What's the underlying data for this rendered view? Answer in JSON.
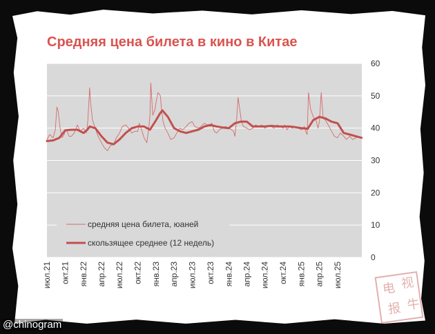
{
  "chart_data": {
    "type": "line",
    "title": "Средняя цена билета в кино в Китае",
    "xlabel": "",
    "ylabel": "",
    "ylim": [
      0,
      60
    ],
    "yticks": [
      "0",
      "10",
      "20",
      "30",
      "40",
      "50",
      "60"
    ],
    "xlim": [
      "2021-07-01",
      "2025-10-31"
    ],
    "xticks": [
      {
        "label": "июл.21",
        "date": "2021-07-01"
      },
      {
        "label": "окт.21",
        "date": "2021-10-01"
      },
      {
        "label": "янв.22",
        "date": "2022-01-01"
      },
      {
        "label": "апр.22",
        "date": "2022-04-01"
      },
      {
        "label": "июл.22",
        "date": "2022-07-01"
      },
      {
        "label": "окт.22",
        "date": "2022-10-01"
      },
      {
        "label": "янв.23",
        "date": "2023-01-01"
      },
      {
        "label": "апр.23",
        "date": "2023-04-01"
      },
      {
        "label": "июл.23",
        "date": "2023-07-01"
      },
      {
        "label": "окт.23",
        "date": "2023-10-01"
      },
      {
        "label": "янв.24",
        "date": "2024-01-01"
      },
      {
        "label": "апр.24",
        "date": "2024-04-01"
      },
      {
        "label": "июл.24",
        "date": "2024-07-01"
      },
      {
        "label": "окт.24",
        "date": "2024-10-01"
      },
      {
        "label": "янв.25",
        "date": "2025-01-01"
      },
      {
        "label": "апр.25",
        "date": "2025-04-01"
      },
      {
        "label": "июл.25",
        "date": "2025-07-01"
      }
    ],
    "grid": true,
    "legend_position": "bottom-left",
    "colors": {
      "title": "#d9534f",
      "weekly": "#d46a6a",
      "average": "#c0504d",
      "plot_bg": "#d9d9d9"
    },
    "series": [
      {
        "name": "средняя цена билета, юаней",
        "style": "thin",
        "x": [
          "2021-07-01",
          "2021-07-15",
          "2021-08-01",
          "2021-08-12",
          "2021-08-20",
          "2021-08-27",
          "2021-09-05",
          "2021-09-15",
          "2021-09-25",
          "2021-10-01",
          "2021-10-08",
          "2021-10-20",
          "2021-11-01",
          "2021-11-15",
          "2021-12-01",
          "2021-12-15",
          "2022-01-01",
          "2022-01-15",
          "2022-01-22",
          "2022-02-01",
          "2022-02-05",
          "2022-02-15",
          "2022-03-01",
          "2022-03-15",
          "2022-04-01",
          "2022-04-15",
          "2022-05-01",
          "2022-05-15",
          "2022-06-01",
          "2022-06-15",
          "2022-07-01",
          "2022-07-15",
          "2022-08-01",
          "2022-08-15",
          "2022-09-01",
          "2022-09-15",
          "2022-10-01",
          "2022-10-08",
          "2022-10-20",
          "2022-11-01",
          "2022-11-15",
          "2022-11-25",
          "2022-12-01",
          "2022-12-05",
          "2022-12-15",
          "2022-12-25",
          "2023-01-01",
          "2023-01-10",
          "2023-01-22",
          "2023-01-28",
          "2023-02-05",
          "2023-02-15",
          "2023-03-01",
          "2023-03-15",
          "2023-04-01",
          "2023-04-15",
          "2023-05-01",
          "2023-05-15",
          "2023-06-01",
          "2023-06-15",
          "2023-07-01",
          "2023-07-15",
          "2023-08-01",
          "2023-08-15",
          "2023-09-01",
          "2023-09-15",
          "2023-10-01",
          "2023-10-08",
          "2023-10-20",
          "2023-11-01",
          "2023-11-15",
          "2023-12-01",
          "2023-12-15",
          "2024-01-01",
          "2024-01-15",
          "2024-01-25",
          "2024-02-01",
          "2024-02-10",
          "2024-02-17",
          "2024-02-25",
          "2024-03-05",
          "2024-03-15",
          "2024-04-01",
          "2024-04-15",
          "2024-05-01",
          "2024-05-15",
          "2024-06-01",
          "2024-06-15",
          "2024-07-01",
          "2024-07-15",
          "2024-08-01",
          "2024-08-15",
          "2024-09-01",
          "2024-09-15",
          "2024-10-01",
          "2024-10-08",
          "2024-10-20",
          "2024-11-01",
          "2024-11-15",
          "2024-12-01",
          "2024-12-15",
          "2025-01-01",
          "2025-01-15",
          "2025-01-22",
          "2025-01-29",
          "2025-02-05",
          "2025-02-15",
          "2025-03-01",
          "2025-03-15",
          "2025-03-25",
          "2025-04-01",
          "2025-04-10",
          "2025-04-20",
          "2025-05-01",
          "2025-05-15",
          "2025-06-01",
          "2025-06-15",
          "2025-07-01",
          "2025-07-15",
          "2025-08-01",
          "2025-08-15",
          "2025-09-01",
          "2025-09-15",
          "2025-10-01",
          "2025-10-15",
          "2025-10-30"
        ],
        "y": [
          36.5,
          38.0,
          37.0,
          39.5,
          46.5,
          45.0,
          40.0,
          37.0,
          38.0,
          39.0,
          39.5,
          37.5,
          37.5,
          38.5,
          41.0,
          39.0,
          40.0,
          38.5,
          42.0,
          52.5,
          48.0,
          42.5,
          40.0,
          37.5,
          35.5,
          34.0,
          33.0,
          34.5,
          35.0,
          37.0,
          38.5,
          40.5,
          41.0,
          40.0,
          38.5,
          39.0,
          39.0,
          41.5,
          39.5,
          37.0,
          35.5,
          40.0,
          44.0,
          54.0,
          44.0,
          45.5,
          48.0,
          51.0,
          50.0,
          46.0,
          42.0,
          40.0,
          38.5,
          36.5,
          37.0,
          38.5,
          40.0,
          39.5,
          40.5,
          41.5,
          42.0,
          40.5,
          40.0,
          40.5,
          41.5,
          41.0,
          40.5,
          41.5,
          39.0,
          38.5,
          39.5,
          40.0,
          40.5,
          40.0,
          39.5,
          39.0,
          37.5,
          43.0,
          49.5,
          46.0,
          42.0,
          40.5,
          40.0,
          39.5,
          40.0,
          41.0,
          40.5,
          41.0,
          40.0,
          40.5,
          40.5,
          40.0,
          41.0,
          40.5,
          40.0,
          41.0,
          39.5,
          40.5,
          40.0,
          40.5,
          40.0,
          39.5,
          40.5,
          39.0,
          38.0,
          51.0,
          46.0,
          43.5,
          42.5,
          40.0,
          42.0,
          51.0,
          43.0,
          42.5,
          41.0,
          39.0,
          37.5,
          37.0,
          38.5,
          37.5,
          36.5,
          37.5,
          36.5,
          37.0,
          37.5,
          37.0
        ]
      },
      {
        "name": "скользящее среднее (12 недель)",
        "style": "thick",
        "x": [
          "2021-07-01",
          "2021-08-01",
          "2021-09-01",
          "2021-10-01",
          "2021-11-01",
          "2021-12-01",
          "2022-01-01",
          "2022-01-20",
          "2022-02-01",
          "2022-03-01",
          "2022-04-01",
          "2022-05-01",
          "2022-06-01",
          "2022-07-01",
          "2022-08-01",
          "2022-09-01",
          "2022-10-01",
          "2022-11-01",
          "2022-12-01",
          "2023-01-01",
          "2023-01-20",
          "2023-02-01",
          "2023-03-01",
          "2023-04-01",
          "2023-05-01",
          "2023-06-01",
          "2023-07-01",
          "2023-08-01",
          "2023-09-01",
          "2023-10-01",
          "2023-11-01",
          "2023-12-01",
          "2024-01-01",
          "2024-02-01",
          "2024-03-01",
          "2024-04-01",
          "2024-05-01",
          "2024-06-01",
          "2024-07-01",
          "2024-08-01",
          "2024-09-01",
          "2024-10-01",
          "2024-11-01",
          "2024-12-01",
          "2025-01-01",
          "2025-02-01",
          "2025-03-01",
          "2025-04-01",
          "2025-05-01",
          "2025-06-01",
          "2025-07-01",
          "2025-08-01",
          "2025-09-01",
          "2025-10-01",
          "2025-10-30"
        ],
        "y": [
          36.0,
          36.2,
          37.0,
          39.3,
          39.5,
          39.5,
          38.5,
          39.5,
          40.5,
          40.0,
          37.5,
          35.5,
          35.0,
          36.5,
          38.5,
          40.0,
          40.5,
          40.5,
          39.5,
          42.5,
          44.5,
          45.5,
          43.5,
          40.0,
          39.0,
          38.5,
          39.0,
          39.5,
          40.5,
          41.0,
          40.5,
          40.2,
          40.0,
          41.5,
          42.0,
          42.0,
          40.5,
          40.5,
          40.5,
          40.7,
          40.5,
          40.5,
          40.5,
          40.3,
          40.0,
          39.8,
          42.5,
          43.5,
          43.0,
          42.0,
          41.5,
          38.5,
          38.0,
          37.5,
          37.0
        ]
      }
    ]
  },
  "watermark": {
    "text": "@chinogram"
  },
  "stamp": {
    "text": "电 视 报 牛",
    "color": "#c0504d"
  }
}
